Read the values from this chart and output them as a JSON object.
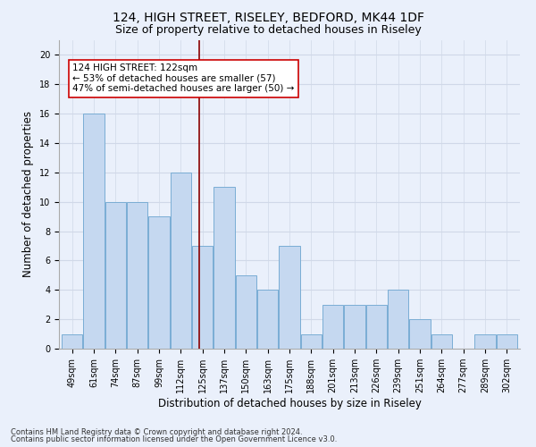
{
  "title1": "124, HIGH STREET, RISELEY, BEDFORD, MK44 1DF",
  "title2": "Size of property relative to detached houses in Riseley",
  "xlabel": "Distribution of detached houses by size in Riseley",
  "ylabel": "Number of detached properties",
  "footnote1": "Contains HM Land Registry data © Crown copyright and database right 2024.",
  "footnote2": "Contains public sector information licensed under the Open Government Licence v3.0.",
  "bin_labels": [
    "49sqm",
    "61sqm",
    "74sqm",
    "87sqm",
    "99sqm",
    "112sqm",
    "125sqm",
    "137sqm",
    "150sqm",
    "163sqm",
    "175sqm",
    "188sqm",
    "201sqm",
    "213sqm",
    "226sqm",
    "239sqm",
    "251sqm",
    "264sqm",
    "277sqm",
    "289sqm",
    "302sqm"
  ],
  "bar_values": [
    1,
    16,
    10,
    10,
    9,
    12,
    7,
    11,
    5,
    4,
    7,
    1,
    3,
    3,
    3,
    4,
    2,
    1,
    0,
    1,
    1
  ],
  "bar_color": "#c5d8f0",
  "bar_edgecolor": "#7aadd4",
  "grid_color": "#d0d8e8",
  "vline_x_index": 5.85,
  "vline_color": "#8b0000",
  "annotation_line1": "124 HIGH STREET: 122sqm",
  "annotation_line2": "← 53% of detached houses are smaller (57)",
  "annotation_line3": "47% of semi-detached houses are larger (50) →",
  "annotation_box_color": "#ffffff",
  "annotation_box_edgecolor": "#cc0000",
  "ylim": [
    0,
    21
  ],
  "yticks": [
    0,
    2,
    4,
    6,
    8,
    10,
    12,
    14,
    16,
    18,
    20
  ],
  "bg_color": "#eaf0fb",
  "title1_fontsize": 10,
  "title2_fontsize": 9,
  "xlabel_fontsize": 8.5,
  "ylabel_fontsize": 8.5,
  "tick_fontsize": 7,
  "annotation_fontsize": 7.5,
  "footnote_fontsize": 6
}
